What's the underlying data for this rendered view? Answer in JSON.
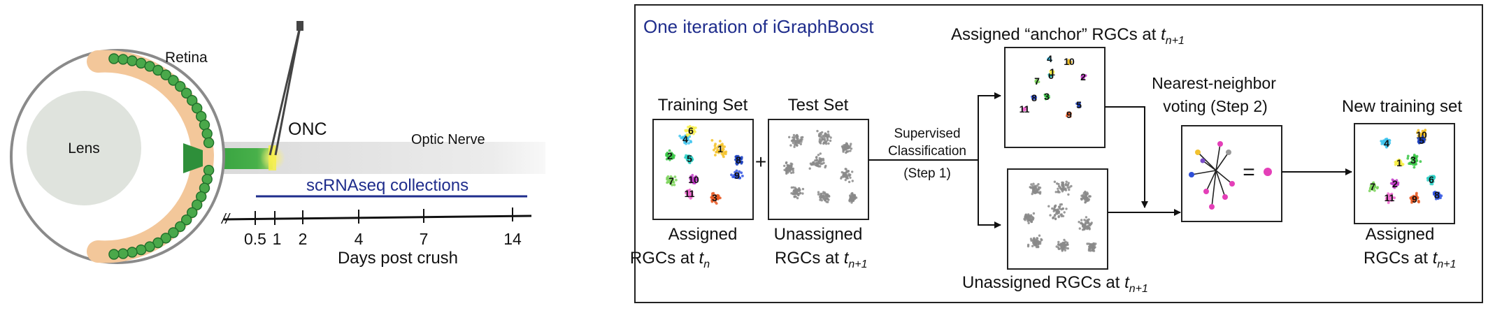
{
  "eye": {
    "lens_label": "Lens",
    "retina_label": "Retina",
    "onc_label": "ONC",
    "nerve_label": "Optic Nerve",
    "collections_label": "scRNAseq collections",
    "break_mark": "//"
  },
  "timeline": {
    "ticks": [
      "0.5",
      "1",
      "2",
      "4",
      "7",
      "14"
    ],
    "xlabel": "Days post crush"
  },
  "flow": {
    "title": "One iteration of iGraphBoost",
    "training_title": "Training Set",
    "test_title": "Test Set",
    "plus": "+",
    "train_caption_1": "Assigned",
    "train_caption_2a": "RGCs at ",
    "train_caption_2b": "t",
    "train_caption_2c": "n",
    "test_caption_1": "Unassigned",
    "test_caption_2a": "RGCs at ",
    "test_caption_2b": "t",
    "test_caption_2c": "n+1",
    "step1_line1": "Supervised",
    "step1_line2": "Classification",
    "step1_line3": "(Step 1)",
    "anchor_title_a": "Assigned “anchor” RGCs at ",
    "anchor_title_b": "t",
    "anchor_title_c": "n+1",
    "unassigned_a": "Unassigned RGCs at ",
    "unassigned_b": "t",
    "unassigned_c": "n+1",
    "vote_line1": "Nearest-neighbor",
    "vote_line2": "voting (Step 2)",
    "vote_equals": "=",
    "new_title": "New training set",
    "new_caption_1": "Assigned",
    "new_caption_2a": "RGCs at ",
    "new_caption_2b": "t",
    "new_caption_2c": "n+1"
  },
  "clusters": {
    "training": [
      "4",
      "1",
      "2",
      "5",
      "6",
      "10",
      "9",
      "11",
      "3",
      "8",
      "7"
    ],
    "anchor": [
      "4",
      "10",
      "3",
      "6",
      "1",
      "2",
      "8",
      "11",
      "9",
      "5",
      "7"
    ],
    "newset": [
      "4",
      "10",
      "3",
      "6",
      "1",
      "2",
      "8",
      "11",
      "9",
      "5",
      "7"
    ]
  },
  "colors": {
    "retina": "#3a9a3a",
    "retina_bg": "#f3c79a",
    "nerve_green": "#2e9b3b",
    "onc_yellow": "#f5ee4a",
    "accent_blue": "#1f2d8c",
    "gray_points": "#8a8a8a"
  }
}
